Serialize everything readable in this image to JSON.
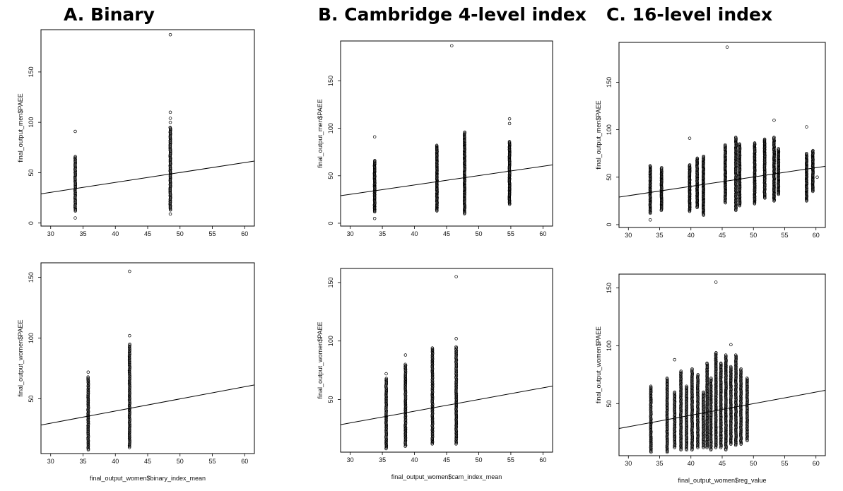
{
  "titles": {
    "a": "A. Binary",
    "b": "B. Cambridge 4-level index",
    "c": "C. 16-level index"
  },
  "chart_data": [
    {
      "id": "a-men",
      "type": "scatter",
      "column": "A",
      "row": "men",
      "xlabel": "",
      "ylabel": "final_output_men$PAEE",
      "xlim": [
        28.5,
        61.5
      ],
      "ylim": [
        -3,
        192
      ],
      "xticks": [
        30,
        35,
        40,
        45,
        50,
        55,
        60
      ],
      "yticks": [
        0,
        50,
        100,
        150
      ],
      "grid": false,
      "line": {
        "x": [
          28.5,
          61.5
        ],
        "y": [
          29,
          61.5
        ]
      },
      "columns": [
        {
          "x": 33.8,
          "ymin": 12,
          "ymax": 66,
          "outliers": [
            5,
            91
          ]
        },
        {
          "x": 48.5,
          "ymin": 13,
          "ymax": 95,
          "outliers": [
            9,
            100,
            104,
            110,
            187
          ]
        }
      ]
    },
    {
      "id": "b-men",
      "type": "scatter",
      "column": "B",
      "row": "men",
      "xlabel": "",
      "ylabel": "final_output_men$PAEE",
      "xlim": [
        28.5,
        61.5
      ],
      "ylim": [
        -3,
        192
      ],
      "xticks": [
        30,
        35,
        40,
        45,
        50,
        55,
        60
      ],
      "yticks": [
        0,
        50,
        100,
        150
      ],
      "grid": false,
      "line": {
        "x": [
          28.5,
          61.5
        ],
        "y": [
          29,
          61.5
        ]
      },
      "columns": [
        {
          "x": 33.8,
          "ymin": 12,
          "ymax": 66,
          "outliers": [
            5,
            91
          ]
        },
        {
          "x": 43.5,
          "ymin": 13,
          "ymax": 82,
          "outliers": []
        },
        {
          "x": 47.8,
          "ymin": 10,
          "ymax": 96,
          "outliers": []
        },
        {
          "x": 54.8,
          "ymin": 20,
          "ymax": 86,
          "outliers": [
            105,
            110
          ]
        }
      ],
      "points": [
        {
          "x": 45.8,
          "y": 187
        }
      ]
    },
    {
      "id": "c-men",
      "type": "scatter",
      "column": "C",
      "row": "men",
      "xlabel": "",
      "ylabel": "final_output_men$PAEE",
      "xlim": [
        28.5,
        61.5
      ],
      "ylim": [
        -3,
        192
      ],
      "xticks": [
        30,
        35,
        40,
        45,
        50,
        55,
        60
      ],
      "yticks": [
        0,
        50,
        100,
        150
      ],
      "grid": false,
      "line": {
        "x": [
          28.5,
          61.5
        ],
        "y": [
          29,
          61.5
        ]
      },
      "columns": [
        {
          "x": 33.5,
          "ymin": 12,
          "ymax": 62,
          "outliers": [
            5
          ]
        },
        {
          "x": 35.3,
          "ymin": 15,
          "ymax": 60,
          "outliers": []
        },
        {
          "x": 39.8,
          "ymin": 14,
          "ymax": 63,
          "outliers": [
            91
          ]
        },
        {
          "x": 41.0,
          "ymin": 18,
          "ymax": 70,
          "outliers": []
        },
        {
          "x": 42.0,
          "ymin": 10,
          "ymax": 72,
          "outliers": []
        },
        {
          "x": 45.5,
          "ymin": 23,
          "ymax": 84,
          "outliers": []
        },
        {
          "x": 47.2,
          "ymin": 15,
          "ymax": 92,
          "outliers": []
        },
        {
          "x": 47.8,
          "ymin": 20,
          "ymax": 85,
          "outliers": []
        },
        {
          "x": 50.2,
          "ymin": 22,
          "ymax": 86,
          "outliers": []
        },
        {
          "x": 51.8,
          "ymin": 28,
          "ymax": 90,
          "outliers": []
        },
        {
          "x": 53.3,
          "ymin": 25,
          "ymax": 92,
          "outliers": [
            110
          ]
        },
        {
          "x": 54.0,
          "ymin": 32,
          "ymax": 80,
          "outliers": []
        },
        {
          "x": 58.5,
          "ymin": 25,
          "ymax": 75,
          "outliers": [
            103
          ]
        },
        {
          "x": 59.5,
          "ymin": 35,
          "ymax": 78,
          "outliers": []
        }
      ],
      "points": [
        {
          "x": 45.8,
          "y": 187
        },
        {
          "x": 60.2,
          "y": 50
        }
      ]
    },
    {
      "id": "a-women",
      "type": "scatter",
      "column": "A",
      "row": "women",
      "xlabel": "final_output_women$binary_index_mean",
      "ylabel": "final_output_women$PAEE",
      "xlim": [
        28.5,
        61.5
      ],
      "ylim": [
        5,
        162
      ],
      "xticks": [
        30,
        35,
        40,
        45,
        50,
        55,
        60
      ],
      "yticks": [
        50,
        100,
        150
      ],
      "grid": false,
      "line": {
        "x": [
          28.5,
          61.5
        ],
        "y": [
          28.5,
          61.5
        ]
      },
      "columns": [
        {
          "x": 35.8,
          "ymin": 8,
          "ymax": 68,
          "outliers": [
            72
          ]
        },
        {
          "x": 42.2,
          "ymin": 10,
          "ymax": 95,
          "outliers": [
            102,
            155
          ]
        }
      ]
    },
    {
      "id": "b-women",
      "type": "scatter",
      "column": "B",
      "row": "women",
      "xlabel": "final_output_women$cam_index_mean",
      "ylabel": "final_output_women$PAEE",
      "xlim": [
        28.5,
        61.5
      ],
      "ylim": [
        5,
        162
      ],
      "xticks": [
        30,
        35,
        40,
        45,
        50,
        55,
        60
      ],
      "yticks": [
        50,
        100,
        150
      ],
      "grid": false,
      "line": {
        "x": [
          28.5,
          61.5
        ],
        "y": [
          28.5,
          61.5
        ]
      },
      "columns": [
        {
          "x": 35.6,
          "ymin": 8,
          "ymax": 68,
          "outliers": [
            72
          ]
        },
        {
          "x": 38.6,
          "ymin": 10,
          "ymax": 80,
          "outliers": [
            88
          ]
        },
        {
          "x": 42.8,
          "ymin": 12,
          "ymax": 94,
          "outliers": []
        },
        {
          "x": 46.5,
          "ymin": 12,
          "ymax": 95,
          "outliers": [
            102,
            155
          ]
        }
      ]
    },
    {
      "id": "c-women",
      "type": "scatter",
      "column": "C",
      "row": "women",
      "xlabel": "final_output_women$reg_value",
      "ylabel": "final_output_women$PAEE",
      "xlim": [
        28.5,
        61.5
      ],
      "ylim": [
        5,
        162
      ],
      "xticks": [
        30,
        35,
        40,
        45,
        50,
        55,
        60
      ],
      "yticks": [
        50,
        100,
        150
      ],
      "grid": false,
      "line": {
        "x": [
          28.5,
          61.5
        ],
        "y": [
          28.5,
          61.5
        ]
      },
      "columns": [
        {
          "x": 33.6,
          "ymin": 8,
          "ymax": 65,
          "outliers": []
        },
        {
          "x": 36.2,
          "ymin": 8,
          "ymax": 72,
          "outliers": []
        },
        {
          "x": 37.4,
          "ymin": 12,
          "ymax": 60,
          "outliers": [
            88
          ]
        },
        {
          "x": 38.4,
          "ymin": 10,
          "ymax": 78,
          "outliers": []
        },
        {
          "x": 39.3,
          "ymin": 10,
          "ymax": 65,
          "outliers": []
        },
        {
          "x": 40.2,
          "ymin": 10,
          "ymax": 80,
          "outliers": []
        },
        {
          "x": 41.1,
          "ymin": 12,
          "ymax": 75,
          "outliers": []
        },
        {
          "x": 42.0,
          "ymin": 12,
          "ymax": 60,
          "outliers": []
        },
        {
          "x": 42.6,
          "ymin": 12,
          "ymax": 85,
          "outliers": []
        },
        {
          "x": 43.2,
          "ymin": 10,
          "ymax": 72,
          "outliers": []
        },
        {
          "x": 44.0,
          "ymin": 12,
          "ymax": 94,
          "outliers": [
            155
          ]
        },
        {
          "x": 44.8,
          "ymin": 12,
          "ymax": 85,
          "outliers": []
        },
        {
          "x": 45.6,
          "ymin": 10,
          "ymax": 92,
          "outliers": []
        },
        {
          "x": 46.4,
          "ymin": 15,
          "ymax": 82,
          "outliers": [
            101
          ]
        },
        {
          "x": 47.2,
          "ymin": 14,
          "ymax": 92,
          "outliers": []
        },
        {
          "x": 48.0,
          "ymin": 15,
          "ymax": 80,
          "outliers": []
        },
        {
          "x": 49.0,
          "ymin": 18,
          "ymax": 72,
          "outliers": []
        }
      ]
    }
  ]
}
